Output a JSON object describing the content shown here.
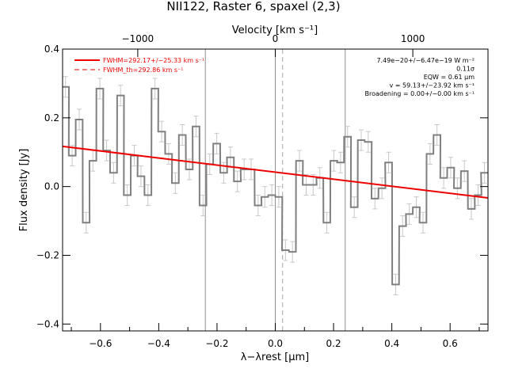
{
  "chart_data": {
    "type": "line",
    "title": "NII122, Raster 6, spaxel (2,3)",
    "xlabel": "λ−λrest [μm]",
    "ylabel": "Flux density [Jy]",
    "top_xlabel": "Velocity [km s⁻¹]",
    "xlim": [
      -0.73,
      0.73
    ],
    "ylim": [
      -0.42,
      0.4
    ],
    "xticks": [
      -0.6,
      -0.4,
      -0.2,
      0.0,
      0.2,
      0.4,
      0.6
    ],
    "xtick_labels": [
      "−0.6",
      "−0.4",
      "−0.2",
      "0.0",
      "0.2",
      "0.4",
      "0.6"
    ],
    "yticks": [
      -0.4,
      -0.2,
      0.0,
      0.2,
      0.4
    ],
    "ytick_labels": [
      "−0.4",
      "−0.2",
      "0.0",
      "0.2",
      "0.4"
    ],
    "top_ticks_x": [
      -0.472,
      0.0,
      0.472
    ],
    "top_tick_labels": [
      "−1000",
      "0",
      "1000"
    ],
    "vertical_lines": {
      "solid": [
        -0.24,
        0.0,
        0.24
      ],
      "dashed": [
        0.025
      ]
    },
    "step_bin_width": 0.0236,
    "series": [
      {
        "name": "",
        "style": "step",
        "color": "#808080",
        "x": [
          -0.72,
          -0.697,
          -0.673,
          -0.649,
          -0.626,
          -0.602,
          -0.579,
          -0.555,
          -0.531,
          -0.508,
          -0.484,
          -0.461,
          -0.437,
          -0.413,
          -0.39,
          -0.366,
          -0.343,
          -0.319,
          -0.295,
          -0.272,
          -0.248,
          -0.225,
          -0.201,
          -0.177,
          -0.154,
          -0.13,
          -0.107,
          -0.083,
          -0.059,
          -0.036,
          -0.012,
          0.012,
          0.035,
          0.059,
          0.083,
          0.106,
          0.13,
          0.153,
          0.177,
          0.201,
          0.224,
          0.248,
          0.271,
          0.295,
          0.319,
          0.342,
          0.366,
          0.389,
          0.413,
          0.437,
          0.46,
          0.484,
          0.507,
          0.531,
          0.555,
          0.578,
          0.602,
          0.625,
          0.649,
          0.673,
          0.696,
          0.718
        ],
        "y": [
          0.29,
          0.09,
          0.195,
          -0.105,
          0.075,
          0.285,
          0.105,
          0.04,
          0.265,
          -0.025,
          0.09,
          0.03,
          -0.025,
          0.285,
          0.16,
          0.095,
          0.01,
          0.15,
          0.05,
          0.175,
          -0.055,
          0.065,
          0.125,
          0.04,
          0.085,
          0.015,
          0.05,
          0.05,
          -0.055,
          -0.03,
          -0.025,
          -0.03,
          -0.185,
          -0.19,
          0.075,
          0.005,
          0.005,
          0.025,
          -0.105,
          0.075,
          0.07,
          0.145,
          -0.06,
          0.135,
          0.13,
          -0.035,
          -0.005,
          0.07,
          -0.285,
          -0.115,
          -0.08,
          -0.06,
          -0.105,
          0.095,
          0.15,
          0.025,
          0.055,
          -0.005,
          0.045,
          -0.065,
          -0.025,
          0.04
        ]
      },
      {
        "name": "FWHM=292.17+/−25.33 km s⁻¹",
        "style": "line",
        "color": "#ee0000",
        "x": [
          -0.73,
          0.73
        ],
        "y": [
          0.117,
          -0.033
        ]
      },
      {
        "name": "FWHM_th=292.86 km s⁻¹",
        "style": "dashed",
        "color": "#ee0000",
        "x": [],
        "y": []
      }
    ],
    "error_bar": 0.03,
    "legend_position": "top-left",
    "annotations": [
      "7.49e−20+/−6.47e−19 W m⁻²",
      "0.11σ",
      "EQW = 0.61 μm",
      "v = 59.13+/−23.92 km s⁻¹",
      "Broadening = 0.00+/−0.00 km s⁻¹"
    ],
    "grid": false
  }
}
